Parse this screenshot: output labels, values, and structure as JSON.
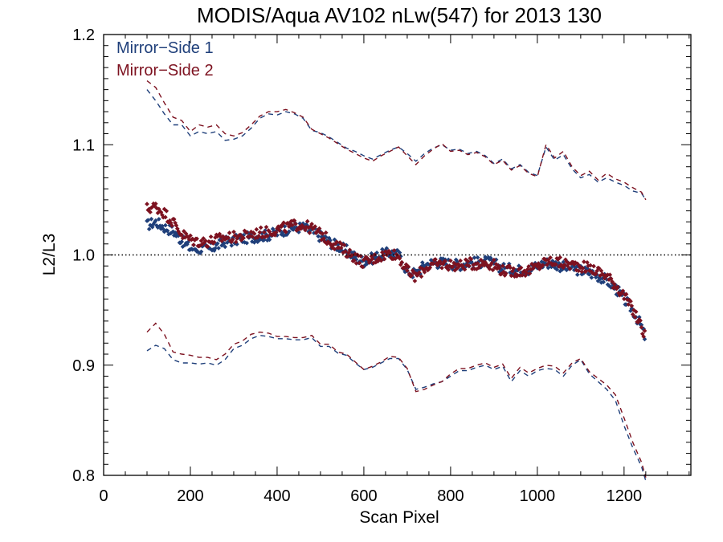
{
  "chart_data": {
    "type": "scatter",
    "title": "MODIS/Aqua AV102 nLw(547) for 2013 130",
    "xlabel": "Scan Pixel",
    "ylabel": "L2/L3",
    "xlim": [
      0,
      1354
    ],
    "ylim": [
      0.8,
      1.2
    ],
    "xticks": [
      "0",
      "200",
      "400",
      "600",
      "800",
      "1000",
      "1200"
    ],
    "yticks": [
      "0.8",
      "0.9",
      "1.0",
      "1.1",
      "1.2"
    ],
    "reference_line": 1.0,
    "legend_position": "top-left",
    "grid": false,
    "series": [
      {
        "name": "Mirror−Side 1",
        "color": "#1f3f7a",
        "x": [
          100,
          120,
          140,
          160,
          180,
          200,
          220,
          240,
          260,
          280,
          300,
          320,
          340,
          360,
          380,
          400,
          420,
          440,
          460,
          480,
          500,
          520,
          540,
          560,
          580,
          600,
          620,
          640,
          660,
          680,
          700,
          720,
          740,
          760,
          780,
          800,
          820,
          840,
          860,
          880,
          900,
          920,
          940,
          960,
          980,
          1000,
          1020,
          1040,
          1060,
          1080,
          1100,
          1120,
          1140,
          1160,
          1180,
          1200,
          1220,
          1240,
          1250
        ],
        "mean": [
          1.027,
          1.03,
          1.025,
          1.022,
          1.013,
          1.006,
          1.006,
          1.005,
          1.008,
          1.012,
          1.013,
          1.015,
          1.016,
          1.017,
          1.018,
          1.02,
          1.023,
          1.025,
          1.025,
          1.021,
          1.017,
          1.012,
          1.008,
          1.004,
          0.998,
          0.994,
          0.997,
          1.0,
          1.002,
          1.0,
          0.985,
          0.983,
          0.991,
          0.993,
          0.993,
          0.992,
          0.991,
          0.993,
          0.993,
          0.994,
          0.992,
          0.988,
          0.987,
          0.986,
          0.987,
          0.99,
          0.993,
          0.992,
          0.989,
          0.988,
          0.986,
          0.984,
          0.981,
          0.977,
          0.97,
          0.96,
          0.95,
          0.935,
          0.923
        ],
        "upper": [
          1.15,
          1.14,
          1.128,
          1.118,
          1.118,
          1.108,
          1.112,
          1.11,
          1.112,
          1.104,
          1.105,
          1.108,
          1.115,
          1.124,
          1.128,
          1.127,
          1.13,
          1.128,
          1.124,
          1.113,
          1.111,
          1.107,
          1.102,
          1.097,
          1.094,
          1.09,
          1.087,
          1.091,
          1.095,
          1.098,
          1.092,
          1.085,
          1.092,
          1.097,
          1.1,
          1.095,
          1.096,
          1.092,
          1.094,
          1.09,
          1.083,
          1.087,
          1.078,
          1.082,
          1.075,
          1.072,
          1.098,
          1.086,
          1.091,
          1.078,
          1.07,
          1.073,
          1.066,
          1.07,
          1.066,
          1.063,
          1.058,
          1.056,
          1.05
        ],
        "lower": [
          0.913,
          0.918,
          0.915,
          0.905,
          0.902,
          0.902,
          0.901,
          0.902,
          0.9,
          0.905,
          0.915,
          0.918,
          0.924,
          0.927,
          0.926,
          0.924,
          0.924,
          0.923,
          0.923,
          0.925,
          0.917,
          0.917,
          0.911,
          0.909,
          0.902,
          0.896,
          0.898,
          0.902,
          0.906,
          0.906,
          0.896,
          0.878,
          0.88,
          0.883,
          0.885,
          0.89,
          0.895,
          0.895,
          0.898,
          0.9,
          0.896,
          0.899,
          0.885,
          0.895,
          0.89,
          0.895,
          0.897,
          0.896,
          0.89,
          0.9,
          0.905,
          0.892,
          0.885,
          0.878,
          0.868,
          0.845,
          0.825,
          0.808,
          0.795
        ]
      },
      {
        "name": "Mirror−Side 2",
        "color": "#7d1220",
        "x": [
          100,
          120,
          140,
          160,
          180,
          200,
          220,
          240,
          260,
          280,
          300,
          320,
          340,
          360,
          380,
          400,
          420,
          440,
          460,
          480,
          500,
          520,
          540,
          560,
          580,
          600,
          620,
          640,
          660,
          680,
          700,
          720,
          740,
          760,
          780,
          800,
          820,
          840,
          860,
          880,
          900,
          920,
          940,
          960,
          980,
          1000,
          1020,
          1040,
          1060,
          1080,
          1100,
          1120,
          1140,
          1160,
          1180,
          1200,
          1220,
          1240,
          1250
        ],
        "mean": [
          1.042,
          1.044,
          1.038,
          1.03,
          1.019,
          1.014,
          1.012,
          1.012,
          1.014,
          1.016,
          1.016,
          1.017,
          1.019,
          1.02,
          1.021,
          1.023,
          1.025,
          1.027,
          1.027,
          1.024,
          1.019,
          1.013,
          1.008,
          1.003,
          0.998,
          0.993,
          0.996,
          0.999,
          1.002,
          0.999,
          0.985,
          0.98,
          0.988,
          0.991,
          0.992,
          0.991,
          0.99,
          0.992,
          0.992,
          0.993,
          0.991,
          0.986,
          0.985,
          0.985,
          0.986,
          0.989,
          0.994,
          0.994,
          0.992,
          0.991,
          0.99,
          0.988,
          0.985,
          0.981,
          0.973,
          0.963,
          0.95,
          0.935,
          0.924
        ],
        "upper": [
          1.158,
          1.152,
          1.138,
          1.125,
          1.122,
          1.112,
          1.118,
          1.116,
          1.118,
          1.11,
          1.108,
          1.111,
          1.118,
          1.126,
          1.13,
          1.13,
          1.132,
          1.129,
          1.125,
          1.114,
          1.11,
          1.106,
          1.101,
          1.096,
          1.092,
          1.088,
          1.085,
          1.09,
          1.094,
          1.098,
          1.09,
          1.082,
          1.09,
          1.096,
          1.101,
          1.094,
          1.095,
          1.091,
          1.093,
          1.089,
          1.082,
          1.086,
          1.077,
          1.081,
          1.074,
          1.071,
          1.1,
          1.088,
          1.094,
          1.08,
          1.072,
          1.076,
          1.068,
          1.074,
          1.069,
          1.066,
          1.061,
          1.057,
          1.05
        ],
        "lower": [
          0.93,
          0.938,
          0.928,
          0.912,
          0.91,
          0.909,
          0.907,
          0.907,
          0.905,
          0.91,
          0.919,
          0.922,
          0.928,
          0.93,
          0.929,
          0.926,
          0.926,
          0.925,
          0.925,
          0.927,
          0.919,
          0.919,
          0.912,
          0.91,
          0.903,
          0.896,
          0.899,
          0.903,
          0.908,
          0.907,
          0.897,
          0.876,
          0.878,
          0.882,
          0.885,
          0.892,
          0.897,
          0.897,
          0.9,
          0.902,
          0.898,
          0.901,
          0.888,
          0.898,
          0.893,
          0.897,
          0.9,
          0.899,
          0.893,
          0.902,
          0.906,
          0.894,
          0.888,
          0.882,
          0.873,
          0.852,
          0.83,
          0.812,
          0.798
        ]
      }
    ]
  }
}
